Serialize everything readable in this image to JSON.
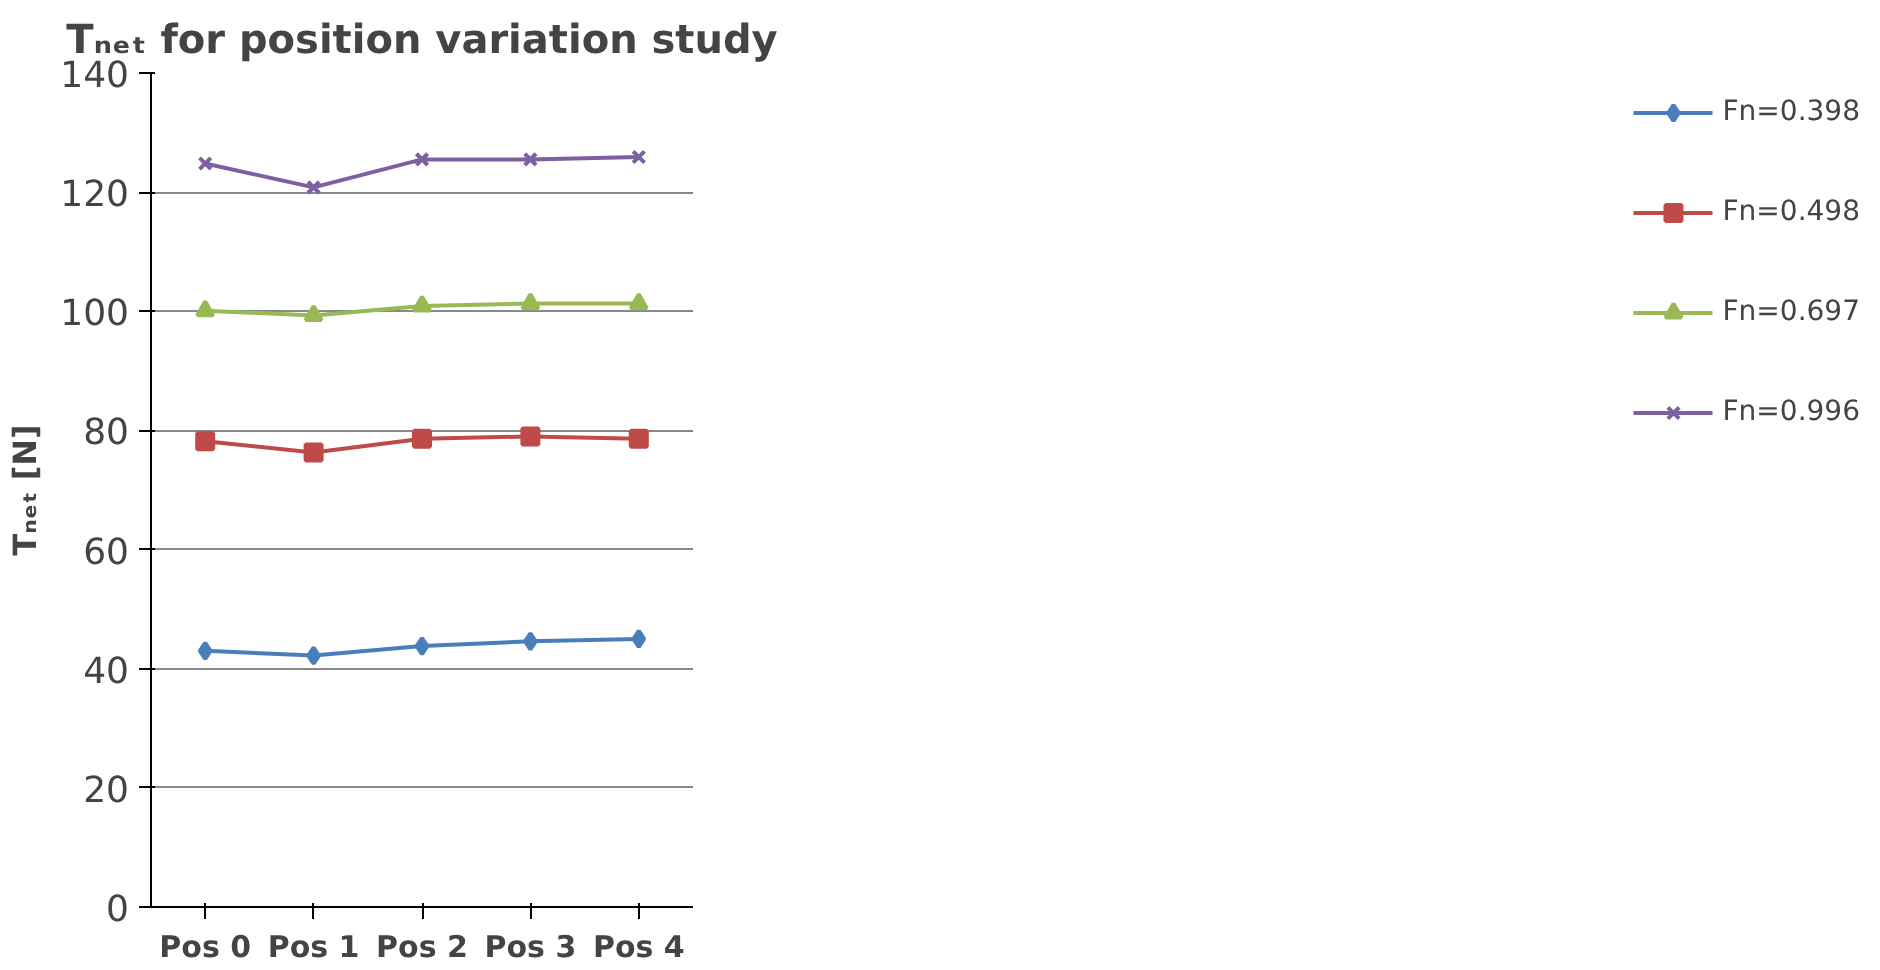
{
  "chart_data": {
    "type": "line",
    "title": "Tₙₑₜ for position variation study",
    "ylabel": "Tₙₑₜ [N]",
    "categories": [
      "Pos 0",
      "Pos 1",
      "Pos 2",
      "Pos 3",
      "Pos 4"
    ],
    "series": [
      {
        "name": "Fn=0.398",
        "color": "#4a7ebb",
        "marker": "diamond",
        "values": [
          43.0,
          42.2,
          43.8,
          44.6,
          45.0
        ]
      },
      {
        "name": "Fn=0.498",
        "color": "#be4b48",
        "marker": "square",
        "values": [
          78.2,
          76.3,
          78.6,
          79.0,
          78.6
        ]
      },
      {
        "name": "Fn=0.697",
        "color": "#98b954",
        "marker": "triangle",
        "values": [
          100.1,
          99.3,
          100.9,
          101.3,
          101.3
        ]
      },
      {
        "name": "Fn=0.996",
        "color": "#7d60a0",
        "marker": "cross",
        "values": [
          124.8,
          120.8,
          125.5,
          125.5,
          125.9
        ]
      }
    ],
    "ylim": [
      0,
      140
    ],
    "yticks": [
      0,
      20,
      40,
      60,
      80,
      100,
      120,
      140
    ],
    "grid": "y",
    "legend": "right",
    "line_style": "solid"
  }
}
